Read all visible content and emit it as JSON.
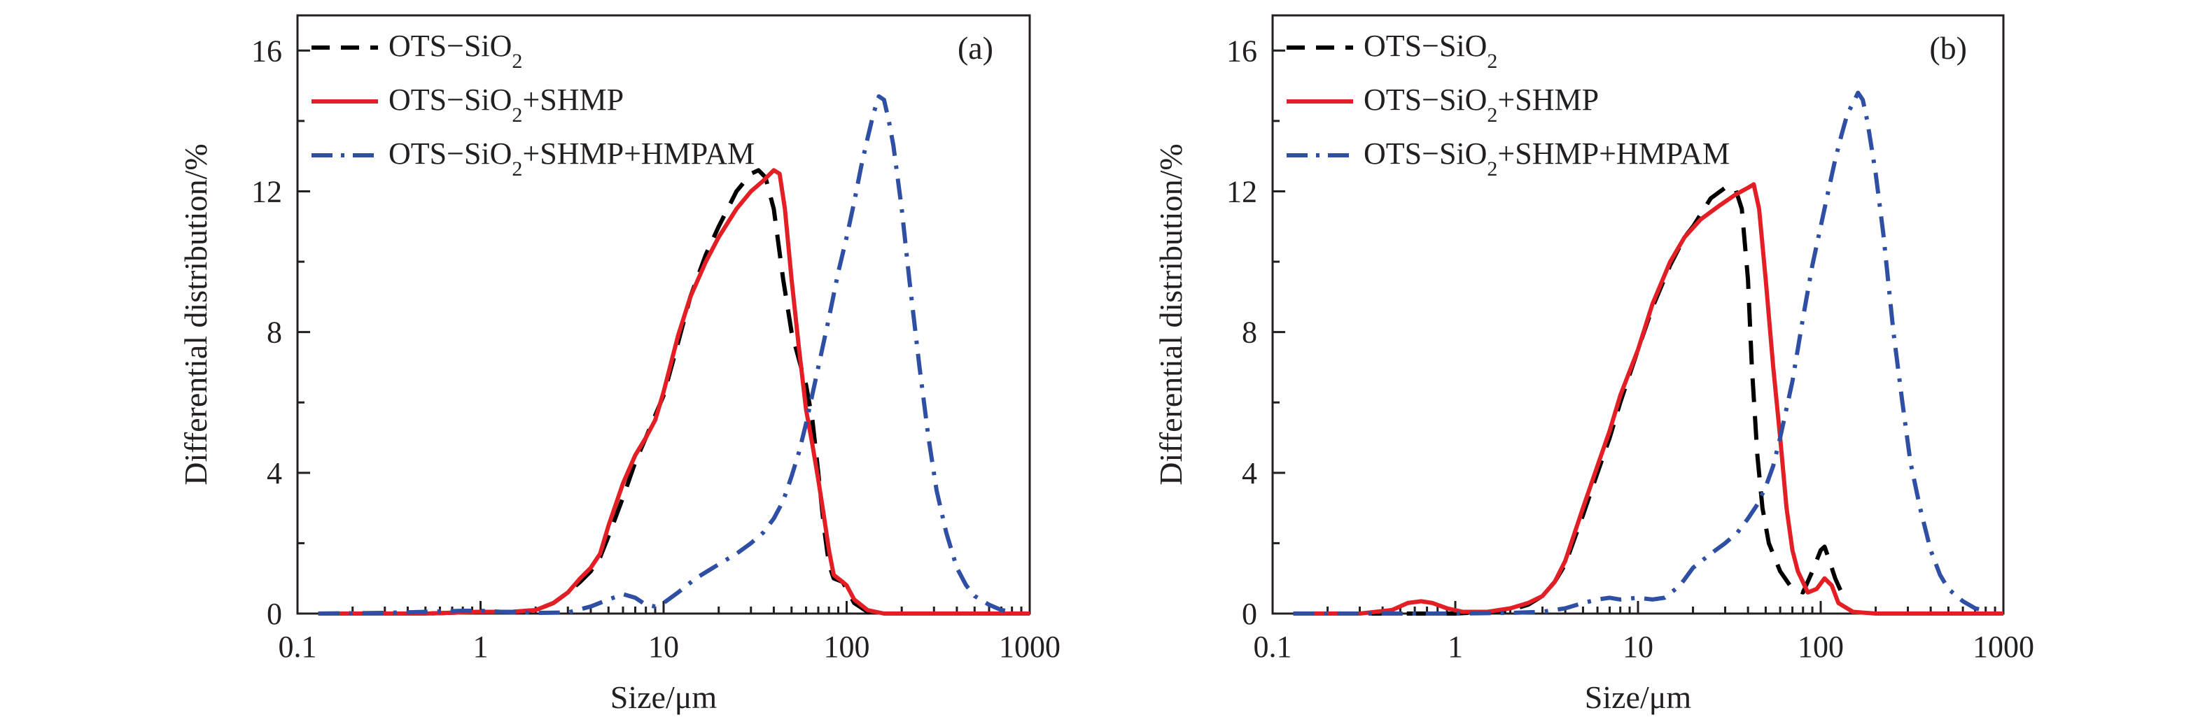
{
  "chart_data": [
    {
      "type": "line",
      "panel_label": "(a)",
      "xlabel": "Size/μm",
      "ylabel": "Differential distribution/%",
      "x_scale": "log",
      "xlim": [
        0.1,
        1000
      ],
      "ylim": [
        0,
        17
      ],
      "xticks": [
        0.1,
        1,
        10,
        100,
        1000
      ],
      "xtick_labels": [
        "0.1",
        "1",
        "10",
        "100",
        "1000"
      ],
      "yticks": [
        0,
        4,
        8,
        12,
        16
      ],
      "ytick_labels": [
        "0",
        "4",
        "8",
        "12",
        "16"
      ],
      "legend_position": "top-right",
      "series": [
        {
          "name": "OTS−SiO₂",
          "color": "#000000",
          "style": "dashed",
          "points": [
            [
              0.13,
              0
            ],
            [
              0.5,
              0
            ],
            [
              1,
              0.05
            ],
            [
              1.5,
              0.05
            ],
            [
              2,
              0.1
            ],
            [
              2.5,
              0.3
            ],
            [
              3,
              0.6
            ],
            [
              3.5,
              0.9
            ],
            [
              4,
              1.2
            ],
            [
              4.5,
              1.6
            ],
            [
              5,
              2.2
            ],
            [
              6,
              3.3
            ],
            [
              7,
              4.3
            ],
            [
              8,
              5.0
            ],
            [
              10,
              6.2
            ],
            [
              12,
              7.7
            ],
            [
              14,
              9.0
            ],
            [
              17,
              10.2
            ],
            [
              20,
              11.0
            ],
            [
              25,
              12.0
            ],
            [
              30,
              12.5
            ],
            [
              33,
              12.6
            ],
            [
              36,
              12.4
            ],
            [
              40,
              11.5
            ],
            [
              45,
              9.5
            ],
            [
              50,
              8.0
            ],
            [
              55,
              7.2
            ],
            [
              60,
              6.5
            ],
            [
              65,
              5.5
            ],
            [
              70,
              4.0
            ],
            [
              75,
              2.5
            ],
            [
              80,
              1.4
            ],
            [
              85,
              1.0
            ],
            [
              95,
              0.9
            ],
            [
              100,
              0.7
            ],
            [
              110,
              0.3
            ],
            [
              130,
              0.05
            ],
            [
              160,
              0
            ],
            [
              1000,
              0
            ]
          ]
        },
        {
          "name": "OTS−SiO₂+SHMP",
          "color": "#e31e24",
          "style": "solid",
          "points": [
            [
              0.13,
              0
            ],
            [
              0.5,
              0
            ],
            [
              1,
              0.05
            ],
            [
              1.5,
              0.05
            ],
            [
              2,
              0.1
            ],
            [
              2.5,
              0.3
            ],
            [
              3,
              0.6
            ],
            [
              3.5,
              1.0
            ],
            [
              4,
              1.3
            ],
            [
              4.5,
              1.7
            ],
            [
              5,
              2.5
            ],
            [
              6,
              3.7
            ],
            [
              7,
              4.5
            ],
            [
              8,
              5.0
            ],
            [
              9,
              5.5
            ],
            [
              10,
              6.3
            ],
            [
              12,
              7.9
            ],
            [
              14,
              9.0
            ],
            [
              17,
              10.0
            ],
            [
              20,
              10.7
            ],
            [
              25,
              11.5
            ],
            [
              30,
              12.0
            ],
            [
              35,
              12.3
            ],
            [
              40,
              12.6
            ],
            [
              43,
              12.5
            ],
            [
              46,
              11.5
            ],
            [
              50,
              9.5
            ],
            [
              55,
              7.5
            ],
            [
              60,
              5.8
            ],
            [
              65,
              4.8
            ],
            [
              70,
              3.8
            ],
            [
              75,
              2.8
            ],
            [
              80,
              1.8
            ],
            [
              85,
              1.1
            ],
            [
              95,
              0.9
            ],
            [
              100,
              0.8
            ],
            [
              110,
              0.4
            ],
            [
              130,
              0.1
            ],
            [
              160,
              0
            ],
            [
              1000,
              0
            ]
          ]
        },
        {
          "name": "OTS−SiO₂+SHMP+HMPAM",
          "color": "#2e4fa3",
          "style": "dashdot",
          "points": [
            [
              0.13,
              0
            ],
            [
              0.3,
              0.02
            ],
            [
              0.5,
              0.05
            ],
            [
              0.8,
              0.08
            ],
            [
              1,
              0.08
            ],
            [
              1.3,
              0.05
            ],
            [
              2,
              0.02
            ],
            [
              3,
              0.03
            ],
            [
              4,
              0.2
            ],
            [
              5,
              0.4
            ],
            [
              6,
              0.55
            ],
            [
              7,
              0.45
            ],
            [
              8,
              0.25
            ],
            [
              9,
              0.2
            ],
            [
              10,
              0.3
            ],
            [
              12,
              0.6
            ],
            [
              15,
              1.0
            ],
            [
              20,
              1.4
            ],
            [
              25,
              1.7
            ],
            [
              30,
              2.0
            ],
            [
              35,
              2.3
            ],
            [
              40,
              2.7
            ],
            [
              45,
              3.2
            ],
            [
              50,
              3.9
            ],
            [
              55,
              4.6
            ],
            [
              60,
              5.4
            ],
            [
              70,
              7.0
            ],
            [
              80,
              8.4
            ],
            [
              90,
              9.7
            ],
            [
              100,
              10.7
            ],
            [
              110,
              11.7
            ],
            [
              120,
              12.7
            ],
            [
              130,
              13.5
            ],
            [
              140,
              14.2
            ],
            [
              150,
              14.7
            ],
            [
              160,
              14.6
            ],
            [
              170,
              14.0
            ],
            [
              180,
              13.3
            ],
            [
              200,
              11.5
            ],
            [
              220,
              9.5
            ],
            [
              250,
              7.0
            ],
            [
              280,
              5.0
            ],
            [
              310,
              3.5
            ],
            [
              350,
              2.3
            ],
            [
              400,
              1.3
            ],
            [
              450,
              0.8
            ],
            [
              500,
              0.5
            ],
            [
              600,
              0.25
            ],
            [
              700,
              0.1
            ],
            [
              800,
              0.05
            ]
          ]
        }
      ]
    },
    {
      "type": "line",
      "panel_label": "(b)",
      "xlabel": "Size/μm",
      "ylabel": "Differential distribution/%",
      "x_scale": "log",
      "xlim": [
        0.1,
        1000
      ],
      "ylim": [
        0,
        17
      ],
      "xticks": [
        0.1,
        1,
        10,
        100,
        1000
      ],
      "xtick_labels": [
        "0.1",
        "1",
        "10",
        "100",
        "1000"
      ],
      "yticks": [
        0,
        4,
        8,
        12,
        16
      ],
      "ytick_labels": [
        "0",
        "4",
        "8",
        "12",
        "16"
      ],
      "legend_position": "top-right",
      "series": [
        {
          "name": "OTS−SiO₂",
          "color": "#000000",
          "style": "dashed",
          "points": [
            [
              0.13,
              0
            ],
            [
              0.5,
              0
            ],
            [
              1,
              0
            ],
            [
              1.5,
              0.05
            ],
            [
              2,
              0.1
            ],
            [
              2.5,
              0.25
            ],
            [
              3,
              0.5
            ],
            [
              3.5,
              0.9
            ],
            [
              4,
              1.4
            ],
            [
              5,
              2.8
            ],
            [
              6,
              4.0
            ],
            [
              7,
              5.0
            ],
            [
              8,
              6.0
            ],
            [
              10,
              7.5
            ],
            [
              12,
              8.7
            ],
            [
              15,
              9.9
            ],
            [
              18,
              10.7
            ],
            [
              20,
              11.0
            ],
            [
              25,
              11.8
            ],
            [
              30,
              12.1
            ],
            [
              34,
              12.1
            ],
            [
              37,
              11.5
            ],
            [
              40,
              9.5
            ],
            [
              42,
              7.0
            ],
            [
              45,
              4.5
            ],
            [
              48,
              3.0
            ],
            [
              52,
              2.0
            ],
            [
              60,
              1.2
            ],
            [
              70,
              0.7
            ],
            [
              80,
              0.6
            ],
            [
              90,
              1.2
            ],
            [
              100,
              1.8
            ],
            [
              105,
              1.9
            ],
            [
              110,
              1.6
            ],
            [
              120,
              1.0
            ],
            [
              130,
              0.6
            ]
          ]
        },
        {
          "name": "OTS−SiO₂+SHMP",
          "color": "#e31e24",
          "style": "solid",
          "points": [
            [
              0.13,
              0
            ],
            [
              0.3,
              0
            ],
            [
              0.45,
              0.1
            ],
            [
              0.55,
              0.3
            ],
            [
              0.65,
              0.35
            ],
            [
              0.75,
              0.3
            ],
            [
              0.9,
              0.15
            ],
            [
              1.1,
              0.05
            ],
            [
              1.5,
              0.05
            ],
            [
              2,
              0.15
            ],
            [
              2.5,
              0.3
            ],
            [
              3,
              0.5
            ],
            [
              3.5,
              0.9
            ],
            [
              4,
              1.5
            ],
            [
              5,
              3.0
            ],
            [
              6,
              4.2
            ],
            [
              7,
              5.2
            ],
            [
              8,
              6.2
            ],
            [
              10,
              7.5
            ],
            [
              12,
              8.8
            ],
            [
              15,
              10.0
            ],
            [
              18,
              10.7
            ],
            [
              22,
              11.2
            ],
            [
              28,
              11.6
            ],
            [
              34,
              11.9
            ],
            [
              40,
              12.1
            ],
            [
              43,
              12.2
            ],
            [
              46,
              11.5
            ],
            [
              50,
              9.5
            ],
            [
              55,
              7.0
            ],
            [
              60,
              5.0
            ],
            [
              65,
              3.0
            ],
            [
              70,
              1.8
            ],
            [
              75,
              1.2
            ],
            [
              85,
              0.6
            ],
            [
              95,
              0.7
            ],
            [
              105,
              1.0
            ],
            [
              115,
              0.8
            ],
            [
              125,
              0.3
            ],
            [
              150,
              0.05
            ],
            [
              200,
              0
            ],
            [
              1000,
              0
            ]
          ]
        },
        {
          "name": "OTS−SiO₂+SHMP+HMPAM",
          "color": "#2e4fa3",
          "style": "dashdot",
          "points": [
            [
              0.13,
              0
            ],
            [
              1,
              0
            ],
            [
              2,
              0.02
            ],
            [
              3,
              0.05
            ],
            [
              4,
              0.15
            ],
            [
              5,
              0.3
            ],
            [
              6,
              0.4
            ],
            [
              7,
              0.45
            ],
            [
              8,
              0.4
            ],
            [
              10,
              0.45
            ],
            [
              12,
              0.4
            ],
            [
              14,
              0.45
            ],
            [
              17,
              0.8
            ],
            [
              20,
              1.3
            ],
            [
              25,
              1.7
            ],
            [
              30,
              2.0
            ],
            [
              35,
              2.3
            ],
            [
              40,
              2.7
            ],
            [
              45,
              3.1
            ],
            [
              50,
              3.6
            ],
            [
              55,
              4.2
            ],
            [
              60,
              5.0
            ],
            [
              70,
              6.6
            ],
            [
              80,
              8.4
            ],
            [
              90,
              9.9
            ],
            [
              100,
              11.0
            ],
            [
              110,
              12.0
            ],
            [
              120,
              12.9
            ],
            [
              130,
              13.6
            ],
            [
              140,
              14.2
            ],
            [
              150,
              14.5
            ],
            [
              160,
              14.8
            ],
            [
              170,
              14.6
            ],
            [
              180,
              14.0
            ],
            [
              200,
              12.5
            ],
            [
              220,
              10.8
            ],
            [
              250,
              8.0
            ],
            [
              280,
              6.0
            ],
            [
              310,
              4.3
            ],
            [
              350,
              3.0
            ],
            [
              400,
              1.8
            ],
            [
              450,
              1.1
            ],
            [
              500,
              0.7
            ],
            [
              600,
              0.35
            ],
            [
              700,
              0.15
            ],
            [
              800,
              0.08
            ]
          ]
        }
      ]
    }
  ]
}
